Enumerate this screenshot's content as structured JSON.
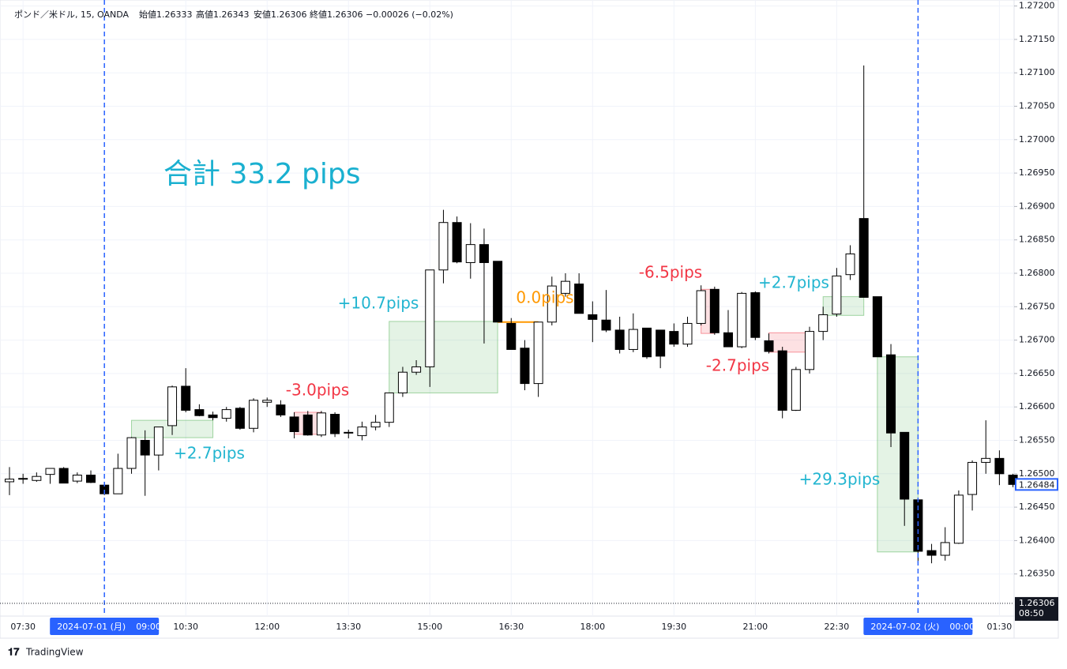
{
  "chart_data": {
    "type": "candlestick",
    "header": {
      "symbol": "ポンド／米ドル, 15, OANDA",
      "open": "始値1.26333",
      "high": "高値1.26343",
      "low": "安値1.26306",
      "close": "終値1.26306",
      "change": "−0.00026 (−0.02%)"
    },
    "total": "合計 33.2 pips",
    "footer": "TradingView",
    "categories": [
      null,
      "07:30",
      null,
      null,
      null,
      null,
      null,
      "09:00",
      null,
      null,
      null,
      null,
      null,
      "10:30",
      null,
      null,
      null,
      null,
      null,
      "12:00",
      null,
      null,
      null,
      null,
      null,
      "13:30",
      null,
      null,
      null,
      null,
      null,
      "15:00",
      null,
      null,
      null,
      null,
      null,
      "16:30",
      null,
      null,
      null,
      null,
      null,
      "18:00",
      null,
      null,
      null,
      null,
      null,
      "19:30",
      null,
      null,
      null,
      null,
      null,
      "21:00",
      null,
      null,
      null,
      null,
      null,
      "22:30",
      null,
      null,
      null,
      null,
      null,
      "00:00",
      null,
      null,
      null,
      null,
      null,
      "01:30",
      null
    ],
    "open": [
      1.26488,
      1.26492,
      1.2649,
      1.26499,
      1.26508,
      1.26489,
      1.26498,
      1.26483,
      1.2647,
      1.26508,
      1.2655,
      1.26528,
      1.26572,
      1.26631,
      1.26596,
      1.26588,
      1.26583,
      1.26598,
      1.26568,
      1.26607,
      1.26603,
      1.26585,
      1.26588,
      1.26558,
      1.26589,
      1.26562,
      1.26557,
      1.2657,
      1.26577,
      1.26621,
      1.26652,
      1.2666,
      1.26805,
      1.26876,
      1.26816,
      1.26843,
      1.26818,
      1.26725,
      1.26688,
      1.26635,
      1.26727,
      1.2677,
      1.26784,
      1.26738,
      1.2673,
      1.26715,
      1.26686,
      1.26718,
      1.26715,
      1.26713,
      1.26694,
      1.26725,
      1.26776,
      1.26711,
      1.2669,
      1.26771,
      1.26699,
      1.26684,
      1.26595,
      1.26656,
      1.26713,
      1.26739,
      1.26798,
      1.26882,
      1.26765,
      1.26678,
      1.26562,
      1.26461,
      1.26385,
      1.26378,
      1.26396,
      1.26469,
      1.26517,
      1.26523,
      1.26498
    ],
    "high": [
      1.2651,
      1.265,
      1.26502,
      1.26508,
      1.2651,
      1.26502,
      1.26505,
      1.26488,
      1.2653,
      1.26555,
      1.26565,
      1.2657,
      1.26632,
      1.26658,
      1.26604,
      1.26593,
      1.266,
      1.266,
      1.26613,
      1.26614,
      1.2661,
      1.26592,
      1.26594,
      1.26594,
      1.26592,
      1.26566,
      1.26578,
      1.26588,
      1.26621,
      1.2666,
      1.2667,
      1.26805,
      1.26895,
      1.26885,
      1.26875,
      1.26867,
      1.26818,
      1.26733,
      1.267,
      1.26727,
      1.26795,
      1.268,
      1.268,
      1.26758,
      1.26775,
      1.26735,
      1.2674,
      1.26718,
      1.26715,
      1.26725,
      1.26735,
      1.26782,
      1.2678,
      1.26745,
      1.26772,
      1.26773,
      1.2671,
      1.2669,
      1.2666,
      1.2672,
      1.2675,
      1.26808,
      1.26842,
      1.27111,
      1.26765,
      1.26694,
      1.26562,
      1.26461,
      1.26395,
      1.2642,
      1.26475,
      1.2652,
      1.2658,
      1.26535,
      1.265
    ],
    "low": [
      1.26468,
      1.26485,
      1.26488,
      1.26485,
      1.26486,
      1.26486,
      1.26486,
      1.26468,
      1.2647,
      1.265,
      1.26467,
      1.26505,
      1.26558,
      1.26592,
      1.26586,
      1.2658,
      1.26578,
      1.26566,
      1.26562,
      1.266,
      1.26585,
      1.26553,
      1.26557,
      1.26555,
      1.26555,
      1.26553,
      1.2655,
      1.26565,
      1.2657,
      1.26615,
      1.26648,
      1.2663,
      1.26785,
      1.26815,
      1.26792,
      1.26695,
      1.26727,
      1.26686,
      1.26625,
      1.26615,
      1.26722,
      1.26765,
      1.2674,
      1.26697,
      1.26712,
      1.2668,
      1.26682,
      1.26672,
      1.26658,
      1.2669,
      1.2669,
      1.26722,
      1.26708,
      1.2669,
      1.26688,
      1.267,
      1.2668,
      1.26583,
      1.26594,
      1.2665,
      1.267,
      1.26735,
      1.2679,
      1.26764,
      1.26675,
      1.2654,
      1.26422,
      1.26366,
      1.26366,
      1.2637,
      1.26395,
      1.26445,
      1.265,
      1.26483,
      1.2648
    ],
    "close": [
      1.26492,
      1.26493,
      1.26496,
      1.26508,
      1.26486,
      1.26498,
      1.26487,
      1.2647,
      1.26508,
      1.26554,
      1.26528,
      1.2657,
      1.2663,
      1.26595,
      1.26587,
      1.26584,
      1.26596,
      1.26568,
      1.2661,
      1.2661,
      1.26588,
      1.26563,
      1.26558,
      1.26591,
      1.2656,
      1.26561,
      1.2657,
      1.26577,
      1.26621,
      1.26652,
      1.2666,
      1.26805,
      1.26876,
      1.26817,
      1.26843,
      1.26816,
      1.26727,
      1.26686,
      1.26635,
      1.26727,
      1.26781,
      1.26788,
      1.2674,
      1.26731,
      1.26715,
      1.26686,
      1.26716,
      1.26675,
      1.26676,
      1.26694,
      1.26725,
      1.26774,
      1.26711,
      1.2669,
      1.2677,
      1.26704,
      1.26683,
      1.26595,
      1.26656,
      1.26713,
      1.26738,
      1.26796,
      1.26829,
      1.26764,
      1.26675,
      1.26561,
      1.26462,
      1.26384,
      1.26378,
      1.26397,
      1.26468,
      1.26517,
      1.26523,
      1.265,
      1.26484
    ],
    "ylim": [
      1.26287,
      1.27209
    ],
    "yticks": [
      {
        "value": 1.2635,
        "label": "1.26350"
      },
      {
        "value": 1.264,
        "label": "1.26400"
      },
      {
        "value": 1.2645,
        "label": "1.26450"
      },
      {
        "value": 1.265,
        "label": "1.26500"
      },
      {
        "value": 1.2655,
        "label": "1.26550"
      },
      {
        "value": 1.266,
        "label": "1.26600"
      },
      {
        "value": 1.2665,
        "label": "1.26650"
      },
      {
        "value": 1.267,
        "label": "1.26700"
      },
      {
        "value": 1.2675,
        "label": "1.26750"
      },
      {
        "value": 1.268,
        "label": "1.26800"
      },
      {
        "value": 1.2685,
        "label": "1.26850"
      },
      {
        "value": 1.269,
        "label": "1.26900"
      },
      {
        "value": 1.2695,
        "label": "1.26950"
      },
      {
        "value": 1.27,
        "label": "1.27000"
      },
      {
        "value": 1.2705,
        "label": "1.27050"
      },
      {
        "value": 1.271,
        "label": "1.27100"
      },
      {
        "value": 1.2715,
        "label": "1.27150"
      },
      {
        "value": 1.272,
        "label": "1.27200"
      }
    ],
    "grid": true,
    "markers": [
      {
        "date": "2024-07-01 (月)",
        "time": "09:00"
      },
      {
        "date": "2024-07-02 (火)",
        "time": "00:00"
      }
    ],
    "last_price": 1.26484,
    "price_line": {
      "value": 1.26306,
      "time": "08:50"
    },
    "trades": [
      {
        "label": "+2.7pips",
        "color": "#22b5d0",
        "fill": "#4caf50",
        "from": 9,
        "to": 15,
        "top": 1.2658,
        "bottom": 1.26554
      },
      {
        "label": "-3.0pips",
        "color": "#f23645",
        "fill": "#f23645",
        "from": 21,
        "to": 23,
        "top": 1.26592,
        "bottom": 1.26559
      },
      {
        "label": "+10.7pips",
        "color": "#22b5d0",
        "fill": "#4caf50",
        "from": 28,
        "to": 36,
        "top": 1.26728,
        "bottom": 1.26621
      },
      {
        "label": "0.0pips",
        "color": "#ff9800",
        "fill": "#ff9800",
        "from": 36,
        "to": 39,
        "top": 1.26727,
        "bottom": 1.26727
      },
      {
        "label": "-6.5pips",
        "color": "#f23645",
        "fill": "#f23645",
        "from": 51,
        "to": 52,
        "top": 1.26776,
        "bottom": 1.2671
      },
      {
        "label": "-2.7pips",
        "color": "#f23645",
        "fill": "#f23645",
        "from": 56,
        "to": 59,
        "top": 1.26711,
        "bottom": 1.26682
      },
      {
        "label": "+2.7pips",
        "color": "#22b5d0",
        "fill": "#4caf50",
        "from": 60,
        "to": 63,
        "top": 1.26765,
        "bottom": 1.26737
      },
      {
        "label": "+29.3pips",
        "color": "#22b5d0",
        "fill": "#4caf50",
        "from": 64,
        "to": 67,
        "top": 1.26675,
        "bottom": 1.26383
      }
    ]
  }
}
